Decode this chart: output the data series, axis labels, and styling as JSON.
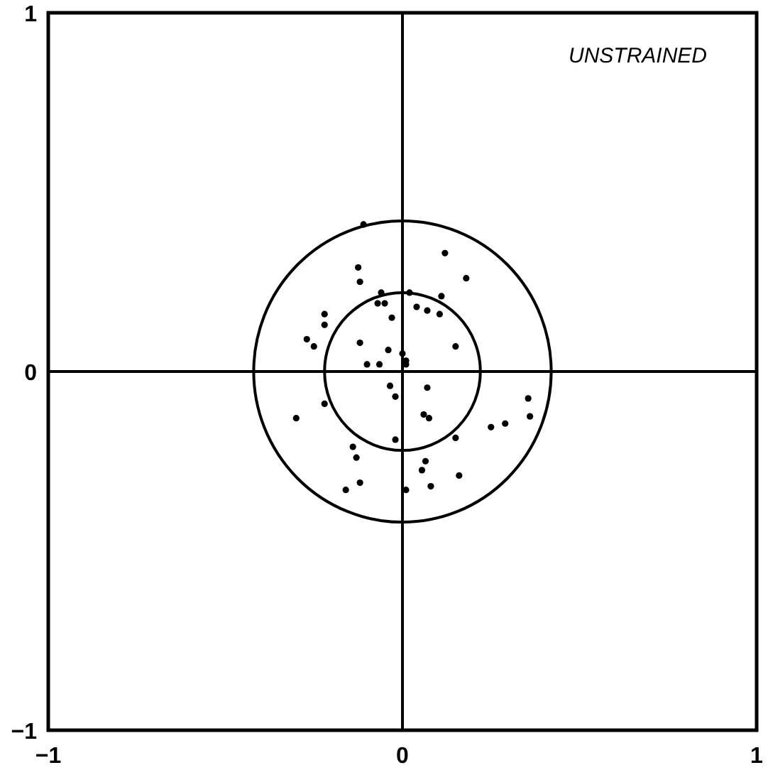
{
  "chart_data": {
    "type": "scatter",
    "annotations": [
      "UNSTRAINED"
    ],
    "xlim": [
      -1,
      1
    ],
    "ylim": [
      -1,
      1
    ],
    "xticks": [
      {
        "value": -1,
        "label": "−1"
      },
      0,
      1
    ],
    "yticks": [
      {
        "value": -1,
        "label": "−1"
      },
      0,
      1
    ],
    "grid": true,
    "marker": "circle",
    "series": [
      {
        "color": "#000000",
        "x": [
          -0.11,
          -0.125,
          -0.12,
          -0.06,
          -0.07,
          -0.05,
          -0.03,
          -0.22,
          -0.22,
          -0.27,
          -0.25,
          -0.12,
          -0.04,
          -0.1,
          -0.065,
          0,
          0.01,
          0.12,
          0.18,
          0.02,
          0.11,
          0.04,
          0.07,
          0.105,
          0.15,
          0.01,
          -0.035,
          -0.02,
          -0.22,
          -0.3,
          -0.14,
          -0.13,
          -0.02,
          -0.12,
          -0.16,
          0.01,
          0.07,
          0.06,
          0.075,
          0.15,
          0.25,
          0.29,
          0.355,
          0.36,
          0.065,
          0.055,
          0.16,
          0.08
        ],
        "values": [
          0.41,
          0.29,
          0.25,
          0.22,
          0.19,
          0.19,
          0.15,
          0.16,
          0.13,
          0.09,
          0.07,
          0.08,
          0.06,
          0.02,
          0.02,
          0.05,
          0.02,
          0.33,
          0.26,
          0.22,
          0.21,
          0.18,
          0.17,
          0.16,
          0.07,
          0.03,
          -0.04,
          -0.07,
          -0.09,
          -0.13,
          -0.21,
          -0.24,
          -0.19,
          -0.31,
          -0.33,
          -0.33,
          -0.045,
          -0.12,
          -0.13,
          -0.185,
          -0.155,
          -0.145,
          -0.075,
          -0.125,
          -0.25,
          -0.275,
          -0.29,
          -0.32
        ]
      }
    ]
  }
}
